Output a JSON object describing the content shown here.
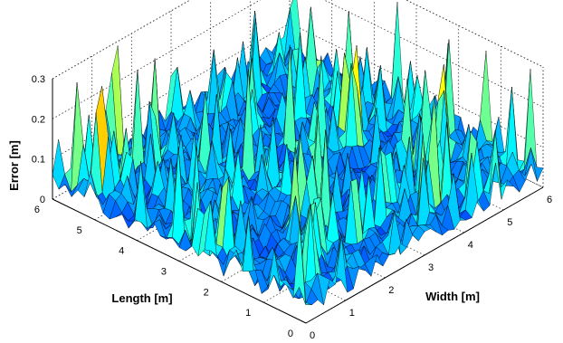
{
  "chart_data": {
    "type": "surface",
    "xlabel": "Width [m]",
    "ylabel": "Length [m]",
    "zlabel": "Error [m]",
    "xlim": [
      0,
      6
    ],
    "ylim": [
      0,
      6
    ],
    "zlim": [
      0,
      0.3
    ],
    "x_ticks": [
      "0",
      "1",
      "2",
      "3",
      "4",
      "5",
      "6"
    ],
    "y_ticks": [
      "0",
      "1",
      "2",
      "3",
      "4",
      "5",
      "6"
    ],
    "z_ticks": [
      "0",
      "0.1",
      "0.2",
      "0.3"
    ],
    "grid": true,
    "colormap": "jet",
    "grid_resolution": 40,
    "typical_error": 0.06,
    "max_error": 0.3,
    "colors": {
      "low": "#00008f",
      "mid": "#0050ff",
      "high": "#00ffff",
      "peak_yellow": "#ffff00",
      "peak_red": "#ff2a00"
    }
  }
}
